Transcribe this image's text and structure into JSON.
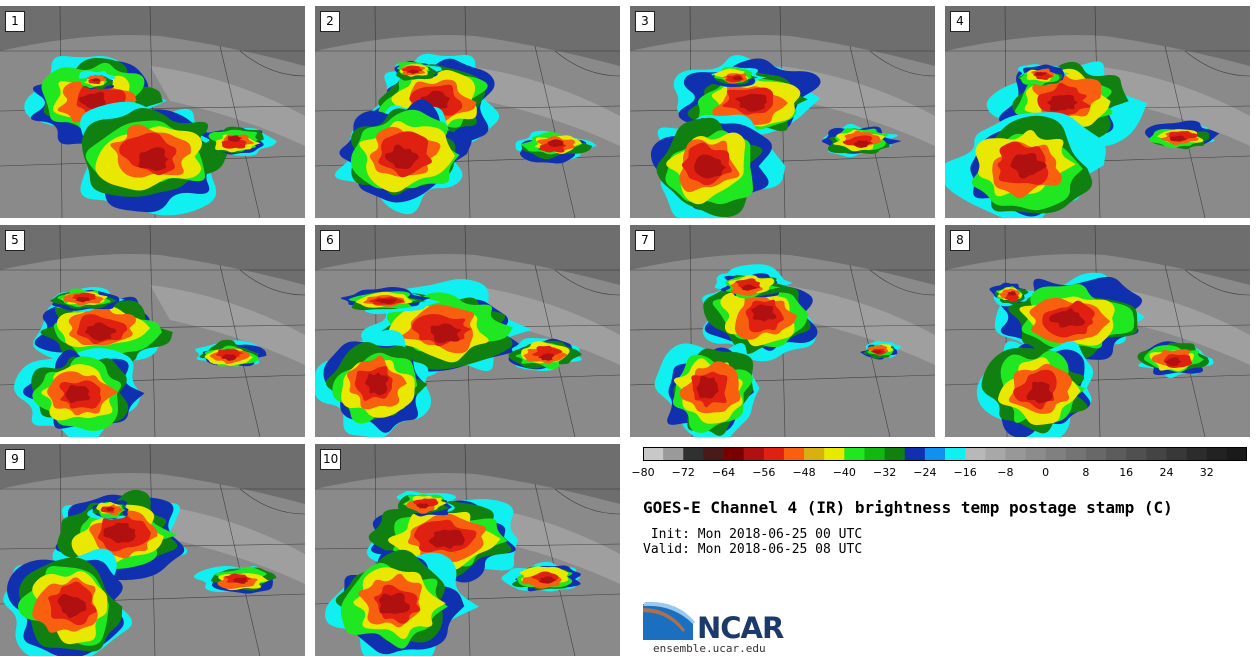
{
  "panels": [
    {
      "label": "1"
    },
    {
      "label": "2"
    },
    {
      "label": "3"
    },
    {
      "label": "4"
    },
    {
      "label": "5"
    },
    {
      "label": "6"
    },
    {
      "label": "7"
    },
    {
      "label": "8"
    },
    {
      "label": "9"
    },
    {
      "label": "10"
    }
  ],
  "colorbar": {
    "colors": [
      "#c8c8c8",
      "#9a9a9a",
      "#303030",
      "#4a1a1a",
      "#7a0000",
      "#b01010",
      "#e02010",
      "#f86010",
      "#d8b010",
      "#e8e800",
      "#20e820",
      "#10b810",
      "#108010",
      "#1030b0",
      "#1090f0",
      "#10f0f0",
      "#b8b8b8",
      "#a8a8a8",
      "#989898",
      "#8c8c8c",
      "#808080",
      "#747474",
      "#686868",
      "#5c5c5c",
      "#505050",
      "#444444",
      "#383838",
      "#2c2c2c",
      "#222222",
      "#1a1a1a"
    ],
    "ticks": [
      "−80",
      "−72",
      "−64",
      "−56",
      "−48",
      "−40",
      "−32",
      "−24",
      "−16",
      "−8",
      "0",
      "8",
      "16",
      "24",
      "32"
    ]
  },
  "title": "GOES-E Channel 4 (IR) brightness temp postage stamp (C)",
  "init": " Init: Mon 2018-06-25 00 UTC",
  "valid": "Valid: Mon 2018-06-25 08 UTC",
  "logo_text": "NCAR",
  "url": "ensemble.ucar.edu"
}
